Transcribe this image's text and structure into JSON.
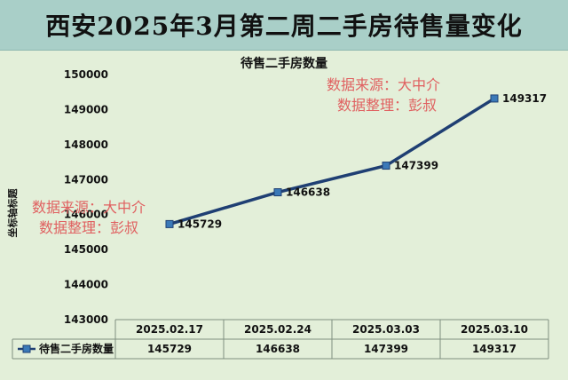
{
  "page_title": "西安2025年3月第二周二手房待售量变化",
  "watermark": {
    "line1": "数据来源：大中介",
    "line2": "数据整理：彭叔"
  },
  "chart_data": {
    "type": "line",
    "title": "待售二手房数量",
    "xlabel": "",
    "ylabel": "坐标轴标题",
    "categories": [
      "2025.02.17",
      "2025.02.24",
      "2025.03.03",
      "2025.03.10"
    ],
    "series": [
      {
        "name": "待售二手房数量",
        "values": [
          145729,
          146638,
          147399,
          149317
        ]
      }
    ],
    "ylim": [
      143000,
      150000
    ],
    "yticks": [
      143000,
      144000,
      145000,
      146000,
      147000,
      148000,
      149000,
      150000
    ],
    "grid": false,
    "legend": "data-table-left",
    "data_table": true,
    "colors": {
      "line": "#1f3f73",
      "marker": "#3b79b8",
      "title_band": "#a9cfc8",
      "background": "#e3efd9"
    }
  }
}
